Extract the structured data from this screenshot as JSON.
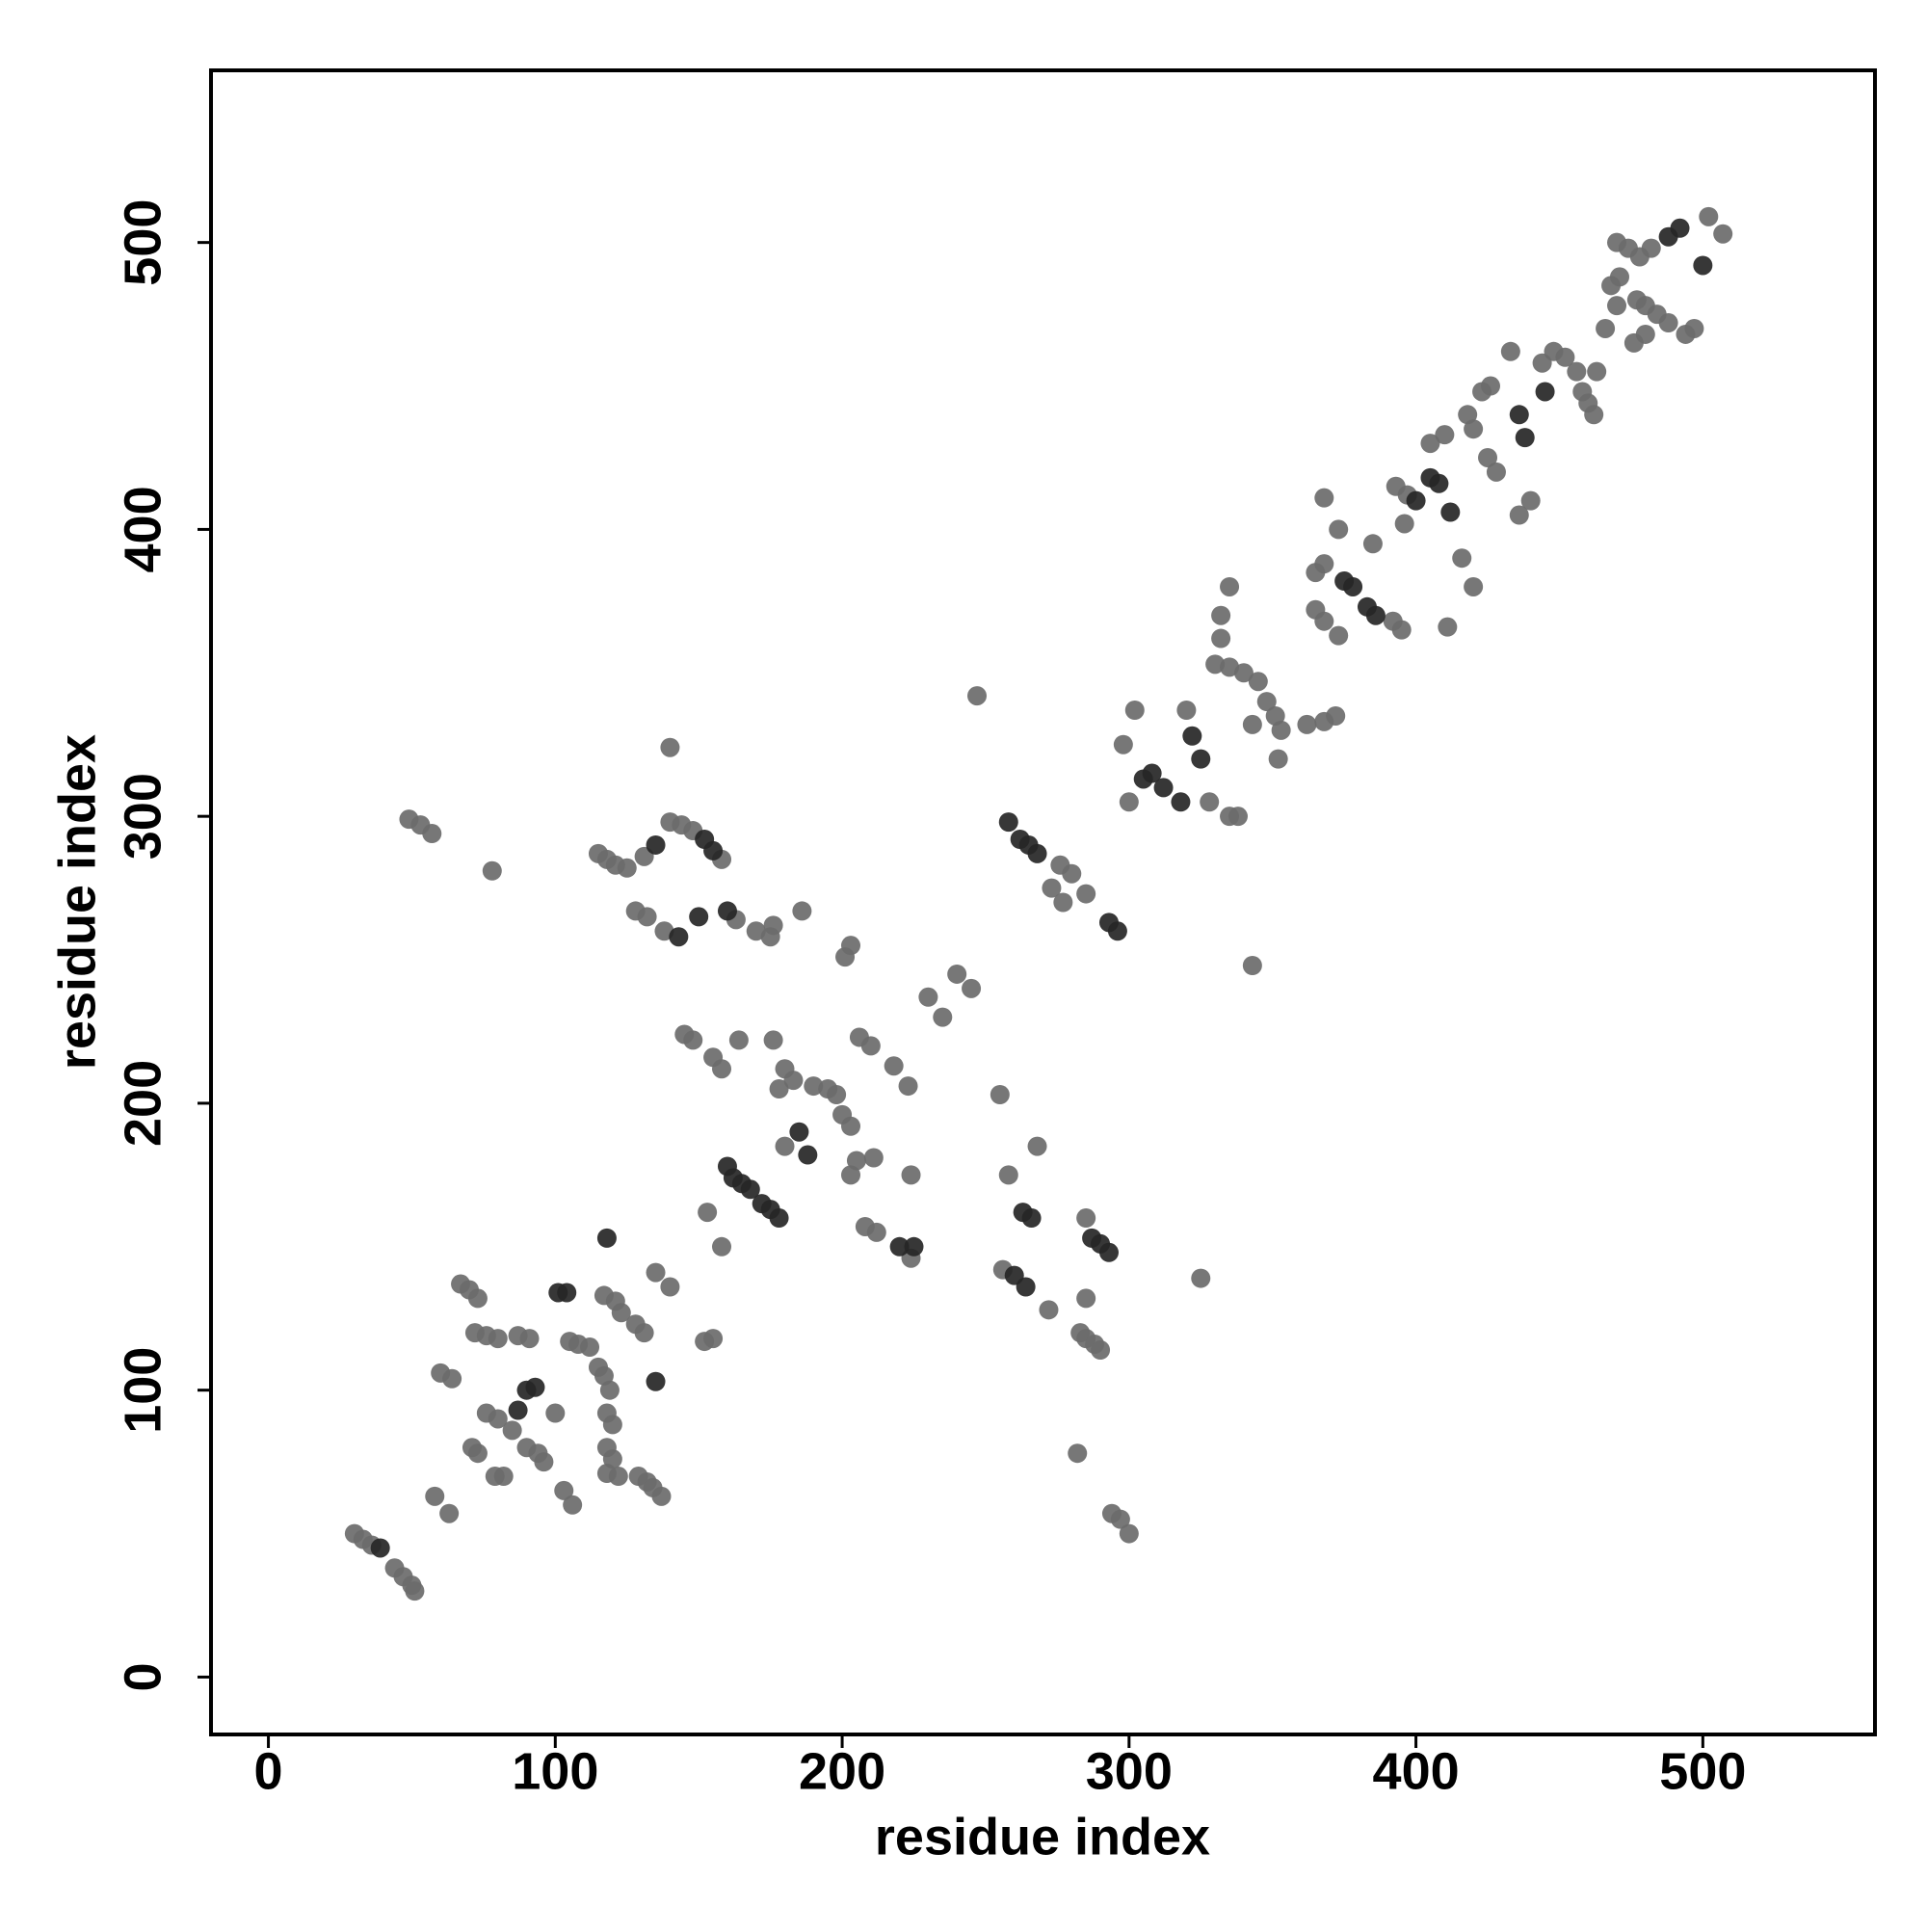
{
  "chart_data": {
    "type": "scatter",
    "xlabel": "residue index",
    "ylabel": "residue index",
    "xlim": [
      -20,
      560
    ],
    "ylim": [
      -20,
      560
    ],
    "xticks": [
      0,
      100,
      200,
      300,
      400,
      500
    ],
    "yticks": [
      0,
      100,
      200,
      300,
      400,
      500
    ],
    "grid": false,
    "series": [
      {
        "color": "#6b6b6b",
        "x": [
          30,
          33,
          36,
          44,
          47,
          50,
          51,
          49,
          53,
          57,
          78,
          58,
          63,
          60,
          64,
          67,
          70,
          73,
          72,
          76,
          80,
          87,
          91,
          71,
          73,
          76,
          80,
          85,
          79,
          82,
          90,
          94,
          96,
          100,
          103,
          106,
          105,
          108,
          112,
          115,
          117,
          119,
          118,
          120,
          118,
          120,
          118,
          122,
          117,
          121,
          123,
          128,
          131,
          129,
          132,
          134,
          137,
          135,
          140,
          152,
          155,
          153,
          158,
          115,
          118,
          121,
          125,
          131,
          140,
          144,
          148,
          158,
          140,
          128,
          132,
          138,
          163,
          170,
          175,
          176,
          186,
          145,
          148,
          155,
          158,
          164,
          176,
          180,
          183,
          178,
          190,
          195,
          198,
          180,
          200,
          203,
          205,
          211,
          203,
          201,
          203,
          206,
          210,
          218,
          223,
          224,
          208,
          212,
          224,
          230,
          235,
          240,
          245,
          255,
          258,
          268,
          256,
          272,
          282,
          276,
          280,
          273,
          277,
          285,
          247,
          283,
          285,
          288,
          290,
          285,
          285,
          294,
          297,
          300,
          325,
          343,
          298,
          302,
          300,
          320,
          330,
          335,
          340,
          345,
          348,
          351,
          353,
          352,
          332,
          335,
          332,
          343,
          328,
          335,
          338,
          362,
          368,
          372,
          365,
          368,
          365,
          368,
          373,
          392,
          395,
          385,
          396,
          393,
          397,
          416,
          420,
          411,
          368,
          373,
          405,
          410,
          418,
          420,
          423,
          426,
          428,
          425,
          444,
          448,
          452,
          456,
          458,
          460,
          462,
          436,
          440,
          433,
          463,
          466,
          468,
          471,
          477,
          480,
          484,
          488,
          494,
          497,
          470,
          474,
          478,
          482,
          502,
          507,
          476,
          480,
          470
        ],
        "values": [
          50,
          48,
          46,
          38,
          35,
          32,
          30,
          299,
          297,
          294,
          281,
          63,
          57,
          106,
          104,
          137,
          135,
          132,
          120,
          119,
          118,
          119,
          118,
          80,
          78,
          92,
          90,
          86,
          70,
          70,
          80,
          78,
          75,
          92,
          65,
          60,
          117,
          116,
          115,
          108,
          105,
          100,
          92,
          88,
          80,
          76,
          71,
          70,
          133,
          131,
          127,
          123,
          120,
          70,
          68,
          66,
          63,
          141,
          136,
          117,
          118,
          162,
          150,
          287,
          285,
          283,
          282,
          286,
          298,
          297,
          295,
          285,
          324,
          267,
          265,
          260,
          264,
          260,
          258,
          262,
          267,
          224,
          222,
          216,
          212,
          222,
          222,
          212,
          208,
          205,
          206,
          205,
          203,
          185,
          196,
          192,
          180,
          181,
          175,
          251,
          255,
          223,
          220,
          213,
          206,
          175,
          157,
          155,
          146,
          237,
          230,
          245,
          240,
          203,
          175,
          185,
          142,
          128,
          78,
          283,
          280,
          275,
          270,
          273,
          342,
          120,
          118,
          116,
          114,
          160,
          132,
          57,
          55,
          50,
          139,
          248,
          325,
          337,
          305,
          337,
          353,
          352,
          350,
          347,
          340,
          335,
          330,
          320,
          370,
          380,
          362,
          332,
          305,
          300,
          300,
          332,
          333,
          335,
          385,
          388,
          372,
          368,
          363,
          368,
          365,
          395,
          402,
          415,
          412,
          390,
          380,
          366,
          411,
          400,
          430,
          433,
          440,
          435,
          448,
          450,
          420,
          425,
          458,
          462,
          460,
          455,
          448,
          444,
          440,
          405,
          410,
          462,
          455,
          470,
          485,
          488,
          480,
          478,
          475,
          472,
          468,
          470,
          500,
          498,
          495,
          498,
          509,
          503,
          465,
          468,
          478
        ]
      },
      {
        "color": "#262626",
        "x": [
          39,
          90,
          93,
          87,
          101,
          104,
          135,
          118,
          162,
          165,
          168,
          160,
          185,
          188,
          172,
          175,
          178,
          220,
          225,
          263,
          266,
          260,
          264,
          287,
          290,
          293,
          262,
          265,
          268,
          293,
          296,
          305,
          308,
          312,
          322,
          325,
          318,
          375,
          378,
          383,
          386,
          400,
          405,
          408,
          412,
          436,
          438,
          445,
          488,
          492,
          500,
          143,
          150,
          155,
          160,
          135,
          152,
          258
        ],
        "values": [
          45,
          100,
          101,
          93,
          134,
          134,
          103,
          153,
          174,
          172,
          170,
          178,
          190,
          182,
          165,
          163,
          160,
          150,
          150,
          162,
          160,
          140,
          136,
          153,
          151,
          148,
          292,
          290,
          287,
          263,
          260,
          313,
          315,
          310,
          328,
          320,
          305,
          382,
          380,
          373,
          370,
          410,
          418,
          416,
          406,
          440,
          432,
          448,
          502,
          505,
          492,
          258,
          265,
          288,
          267,
          290,
          292,
          298
        ]
      }
    ]
  }
}
